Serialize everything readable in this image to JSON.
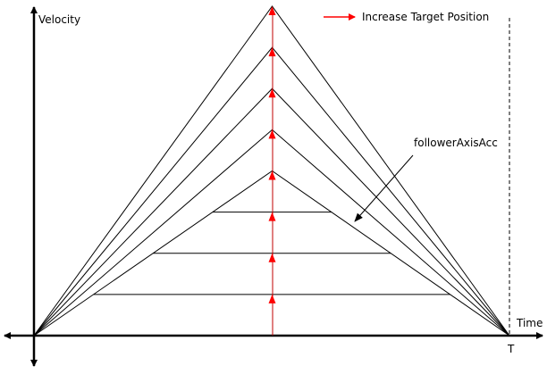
{
  "labels": {
    "y_axis": "Velocity",
    "x_axis": "Time",
    "end_time": "T",
    "legend": "Increase Target Position",
    "annotation": "followerAxisAcc"
  },
  "profiles": {
    "triangle_peak_levels": [
      1.0,
      0.875,
      0.75,
      0.625,
      0.5
    ],
    "trapezoid_plateau_levels": [
      0.375,
      0.25,
      0.125
    ]
  },
  "colors": {
    "line": "#000000",
    "arrow": "#ff0000"
  }
}
